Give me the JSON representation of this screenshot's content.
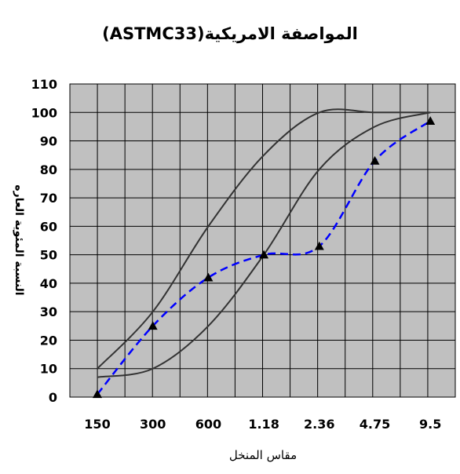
{
  "chart_data": {
    "type": "line",
    "title": "المواصفة الامريكية(ASTMC33)",
    "xlabel": "مقاس المنخل",
    "ylabel": "النسبة المئوية العاره",
    "categories": [
      "150",
      "300",
      "600",
      "1.18",
      "2.36",
      "4.75",
      "9.5"
    ],
    "ylim": [
      0,
      110
    ],
    "yticks": [
      0,
      10,
      20,
      30,
      40,
      50,
      60,
      70,
      80,
      90,
      100,
      110
    ],
    "grid": true,
    "legend": "none",
    "plot_background": "#c0c0c0",
    "series": [
      {
        "style": "solid",
        "color": "#333333",
        "marker": "none",
        "points": [
          [
            0,
            10
          ],
          [
            1,
            30
          ],
          [
            2,
            60
          ],
          [
            3,
            85
          ],
          [
            4,
            100
          ],
          [
            5,
            100
          ],
          [
            6,
            100
          ]
        ]
      },
      {
        "style": "solid",
        "color": "#333333",
        "marker": "none",
        "points": [
          [
            0,
            7
          ],
          [
            1,
            10
          ],
          [
            2,
            25
          ],
          [
            3,
            50
          ],
          [
            4,
            80
          ],
          [
            5,
            95
          ],
          [
            6,
            100
          ]
        ]
      },
      {
        "style": "dashed",
        "color": "#0000ff",
        "marker": "triangle",
        "marker_color": "#000000",
        "points": [
          [
            0,
            1
          ],
          [
            1,
            25
          ],
          [
            2,
            42
          ],
          [
            3,
            50
          ],
          [
            4,
            53
          ],
          [
            5,
            83
          ],
          [
            6,
            97
          ]
        ]
      }
    ]
  }
}
